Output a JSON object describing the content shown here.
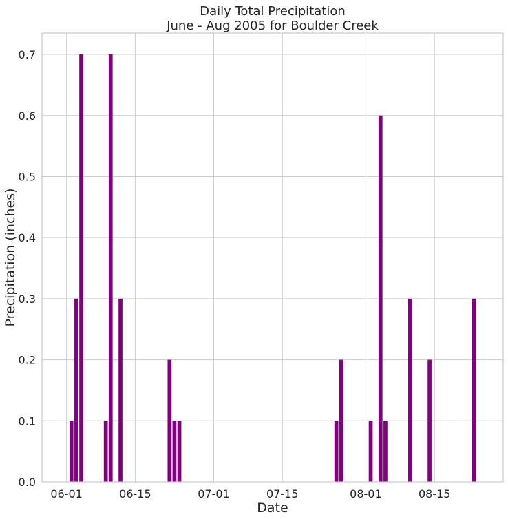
{
  "chart_data": {
    "type": "bar",
    "title": "Daily Total Precipitation",
    "subtitle": "June - Aug 2005 for Boulder Creek",
    "xlabel": "Date",
    "ylabel": "Precipitation (inches)",
    "xlim": [
      "2005-05-27",
      "2005-08-29"
    ],
    "ylim": [
      0,
      0.735
    ],
    "x_ticks": [
      "06-01",
      "06-15",
      "07-01",
      "07-15",
      "08-01",
      "08-15"
    ],
    "x_tick_dates": [
      "2005-06-01",
      "2005-06-15",
      "2005-07-01",
      "2005-07-15",
      "2005-08-01",
      "2005-08-15"
    ],
    "y_ticks": [
      "0.0",
      "0.1",
      "0.2",
      "0.3",
      "0.4",
      "0.5",
      "0.6",
      "0.7"
    ],
    "y_tick_values": [
      0,
      0.1,
      0.2,
      0.3,
      0.4,
      0.5,
      0.6,
      0.7
    ],
    "grid": true,
    "bar_color": "#800080",
    "x": [
      "2005-06-02",
      "2005-06-03",
      "2005-06-04",
      "2005-06-09",
      "2005-06-10",
      "2005-06-12",
      "2005-06-22",
      "2005-06-23",
      "2005-06-24",
      "2005-07-26",
      "2005-07-27",
      "2005-08-02",
      "2005-08-04",
      "2005-08-05",
      "2005-08-10",
      "2005-08-14",
      "2005-08-23"
    ],
    "values": [
      0.1,
      0.3,
      0.7,
      0.1,
      0.7,
      0.3,
      0.2,
      0.1,
      0.1,
      0.1,
      0.2,
      0.1,
      0.6,
      0.1,
      0.3,
      0.2,
      0.3
    ]
  }
}
